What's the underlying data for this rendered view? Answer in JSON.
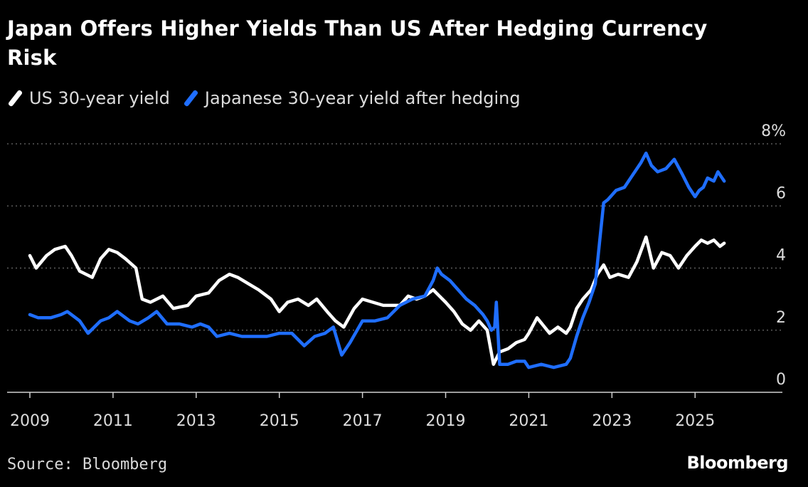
{
  "title": "Japan Offers Higher Yields Than US After Hedging Currency Risk",
  "source": "Source: Bloomberg",
  "brand": "Bloomberg",
  "colors": {
    "background": "#000000",
    "us_series": "#ffffff",
    "japan_series": "#1f6eff",
    "grid": "#6b6b6b",
    "text": "#ffffff"
  },
  "chart_data": {
    "type": "line",
    "xlim": [
      2009,
      2027.1
    ],
    "ylim": [
      0,
      8
    ],
    "grid": "horizontal dotted",
    "legend_placement": "top-left",
    "x_ticks": [
      2009,
      2011,
      2013,
      2015,
      2017,
      2019,
      2021,
      2023,
      2025
    ],
    "x_tick_labels": [
      "2009",
      "2011",
      "2013",
      "2015",
      "2017",
      "2019",
      "2021",
      "2023",
      "2025"
    ],
    "y_ticks": [
      0,
      2,
      4,
      6,
      8
    ],
    "y_tick_labels": [
      "0",
      "2",
      "4",
      "6",
      "8%"
    ],
    "series": [
      {
        "name": "US 30-year yield",
        "color": "#ffffff",
        "x": [
          2009.0,
          2009.15,
          2009.4,
          2009.6,
          2009.85,
          2010.0,
          2010.2,
          2010.5,
          2010.7,
          2010.9,
          2011.1,
          2011.3,
          2011.55,
          2011.7,
          2011.9,
          2012.2,
          2012.45,
          2012.8,
          2013.0,
          2013.3,
          2013.55,
          2013.8,
          2014.0,
          2014.25,
          2014.5,
          2014.8,
          2015.0,
          2015.2,
          2015.45,
          2015.7,
          2015.9,
          2016.15,
          2016.35,
          2016.55,
          2016.8,
          2017.0,
          2017.25,
          2017.5,
          2017.7,
          2017.9,
          2018.1,
          2018.3,
          2018.5,
          2018.7,
          2018.85,
          2019.0,
          2019.2,
          2019.4,
          2019.6,
          2019.8,
          2020.0,
          2020.15,
          2020.3,
          2020.5,
          2020.7,
          2020.9,
          2021.0,
          2021.2,
          2021.5,
          2021.7,
          2021.9,
          2022.0,
          2022.15,
          2022.3,
          2022.5,
          2022.65,
          2022.8,
          2022.95,
          2023.15,
          2023.4,
          2023.6,
          2023.82,
          2024.0,
          2024.2,
          2024.4,
          2024.6,
          2024.8,
          2025.0,
          2025.15,
          2025.3,
          2025.45,
          2025.6,
          2025.7
        ],
        "values": [
          4.4,
          4.0,
          4.4,
          4.6,
          4.7,
          4.4,
          3.9,
          3.7,
          4.3,
          4.6,
          4.5,
          4.3,
          4.0,
          3.0,
          2.9,
          3.1,
          2.7,
          2.8,
          3.1,
          3.2,
          3.6,
          3.8,
          3.7,
          3.5,
          3.3,
          3.0,
          2.6,
          2.9,
          3.0,
          2.8,
          3.0,
          2.6,
          2.3,
          2.1,
          2.7,
          3.0,
          2.9,
          2.8,
          2.8,
          2.8,
          3.1,
          3.0,
          3.1,
          3.3,
          3.1,
          2.9,
          2.6,
          2.2,
          2.0,
          2.3,
          2.0,
          0.9,
          1.3,
          1.4,
          1.6,
          1.7,
          1.9,
          2.4,
          1.9,
          2.1,
          1.9,
          2.1,
          2.7,
          3.0,
          3.3,
          3.8,
          4.1,
          3.7,
          3.8,
          3.7,
          4.2,
          5.0,
          4.0,
          4.5,
          4.4,
          4.0,
          4.4,
          4.7,
          4.9,
          4.8,
          4.9,
          4.7,
          4.8
        ]
      },
      {
        "name": "Japanese 30-year yield after hedging",
        "color": "#1f6eff",
        "x": [
          2009.0,
          2009.2,
          2009.5,
          2009.75,
          2009.9,
          2010.0,
          2010.2,
          2010.4,
          2010.7,
          2010.9,
          2011.1,
          2011.4,
          2011.6,
          2011.85,
          2012.05,
          2012.3,
          2012.6,
          2012.9,
          2013.1,
          2013.3,
          2013.5,
          2013.8,
          2014.1,
          2014.4,
          2014.7,
          2015.0,
          2015.3,
          2015.6,
          2015.85,
          2016.1,
          2016.3,
          2016.5,
          2016.7,
          2017.0,
          2017.3,
          2017.6,
          2017.9,
          2018.2,
          2018.5,
          2018.7,
          2018.8,
          2018.9,
          2019.1,
          2019.3,
          2019.5,
          2019.7,
          2019.9,
          2020.0,
          2020.1,
          2020.18,
          2020.22,
          2020.3,
          2020.5,
          2020.7,
          2020.9,
          2021.0,
          2021.3,
          2021.6,
          2021.9,
          2022.0,
          2022.15,
          2022.3,
          2022.45,
          2022.6,
          2022.7,
          2022.8,
          2022.9,
          2023.1,
          2023.3,
          2023.5,
          2023.7,
          2023.82,
          2023.95,
          2024.1,
          2024.3,
          2024.5,
          2024.7,
          2024.85,
          2025.0,
          2025.1,
          2025.2,
          2025.3,
          2025.45,
          2025.55,
          2025.7
        ],
        "values": [
          2.5,
          2.4,
          2.4,
          2.5,
          2.6,
          2.5,
          2.3,
          1.9,
          2.3,
          2.4,
          2.6,
          2.3,
          2.2,
          2.4,
          2.6,
          2.2,
          2.2,
          2.1,
          2.2,
          2.1,
          1.8,
          1.9,
          1.8,
          1.8,
          1.8,
          1.9,
          1.9,
          1.5,
          1.8,
          1.9,
          2.1,
          1.2,
          1.6,
          2.3,
          2.3,
          2.4,
          2.8,
          3.0,
          3.1,
          3.6,
          4.0,
          3.8,
          3.6,
          3.3,
          3.0,
          2.8,
          2.5,
          2.3,
          2.0,
          2.1,
          2.9,
          0.9,
          0.9,
          1.0,
          1.0,
          0.8,
          0.9,
          0.8,
          0.9,
          1.1,
          1.8,
          2.4,
          2.9,
          3.5,
          4.8,
          6.1,
          6.2,
          6.5,
          6.6,
          7.0,
          7.4,
          7.7,
          7.3,
          7.1,
          7.2,
          7.5,
          7.0,
          6.6,
          6.3,
          6.5,
          6.6,
          6.9,
          6.8,
          7.1,
          6.8
        ]
      }
    ]
  }
}
